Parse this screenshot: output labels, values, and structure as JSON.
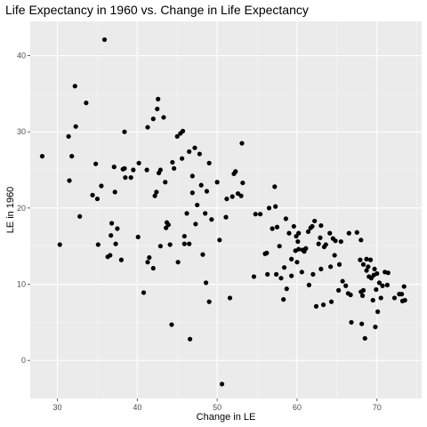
{
  "chart_data": {
    "type": "scatter",
    "title": "Life Expectancy in 1960 vs. Change in Life Expectancy",
    "xlabel": "Change in LE",
    "ylabel": "LE in 1960",
    "xlim": [
      26.6,
      75.6
    ],
    "ylim": [
      -5.0,
      44.5
    ],
    "xticks": [
      30,
      40,
      50,
      60,
      70
    ],
    "yticks": [
      0,
      10,
      20,
      30,
      40
    ],
    "grid": true,
    "background": "#ebebeb",
    "point_color": "#000000",
    "points": [
      [
        28.1,
        26.8
      ],
      [
        30.3,
        15.2
      ],
      [
        31.4,
        29.4
      ],
      [
        31.5,
        23.6
      ],
      [
        31.8,
        26.8
      ],
      [
        32.2,
        36.0
      ],
      [
        32.3,
        30.7
      ],
      [
        32.8,
        18.9
      ],
      [
        33.6,
        33.8
      ],
      [
        34.4,
        21.7
      ],
      [
        34.8,
        25.8
      ],
      [
        35.0,
        21.2
      ],
      [
        35.1,
        15.2
      ],
      [
        35.5,
        22.9
      ],
      [
        35.9,
        42.1
      ],
      [
        36.3,
        13.6
      ],
      [
        36.6,
        13.8
      ],
      [
        36.7,
        16.4
      ],
      [
        36.8,
        18.0
      ],
      [
        37.1,
        25.4
      ],
      [
        37.2,
        22.1
      ],
      [
        37.3,
        15.3
      ],
      [
        37.5,
        17.3
      ],
      [
        38.0,
        13.2
      ],
      [
        38.2,
        25.1
      ],
      [
        38.4,
        25.2
      ],
      [
        38.4,
        30.0
      ],
      [
        38.5,
        24.0
      ],
      [
        39.2,
        24.0
      ],
      [
        39.5,
        25.0
      ],
      [
        40.1,
        16.2
      ],
      [
        40.2,
        25.9
      ],
      [
        40.8,
        8.9
      ],
      [
        41.2,
        25.0
      ],
      [
        41.3,
        30.6
      ],
      [
        41.3,
        12.9
      ],
      [
        41.5,
        13.5
      ],
      [
        42.0,
        31.7
      ],
      [
        42.0,
        12.1
      ],
      [
        42.2,
        21.6
      ],
      [
        42.4,
        22.1
      ],
      [
        42.5,
        33.0
      ],
      [
        42.6,
        34.3
      ],
      [
        42.7,
        24.6
      ],
      [
        42.9,
        25.0
      ],
      [
        42.9,
        15.0
      ],
      [
        43.3,
        31.9
      ],
      [
        43.5,
        23.4
      ],
      [
        43.6,
        17.4
      ],
      [
        43.7,
        18.1
      ],
      [
        43.9,
        17.8
      ],
      [
        44.1,
        15.2
      ],
      [
        44.3,
        4.7
      ],
      [
        44.4,
        26.0
      ],
      [
        44.6,
        25.2
      ],
      [
        45.0,
        29.4
      ],
      [
        45.1,
        12.9
      ],
      [
        45.4,
        29.8
      ],
      [
        45.6,
        26.5
      ],
      [
        45.7,
        30.1
      ],
      [
        45.9,
        16.3
      ],
      [
        45.9,
        15.3
      ],
      [
        46.2,
        19.3
      ],
      [
        46.5,
        27.4
      ],
      [
        46.5,
        15.3
      ],
      [
        46.6,
        2.8
      ],
      [
        46.9,
        24.2
      ],
      [
        46.9,
        22.0
      ],
      [
        47.2,
        27.9
      ],
      [
        47.3,
        17.9
      ],
      [
        47.5,
        20.4
      ],
      [
        47.8,
        27.1
      ],
      [
        48.0,
        23.0
      ],
      [
        48.2,
        13.9
      ],
      [
        48.5,
        19.3
      ],
      [
        48.6,
        10.2
      ],
      [
        48.7,
        22.2
      ],
      [
        49.0,
        7.7
      ],
      [
        49.0,
        25.9
      ],
      [
        49.3,
        18.5
      ],
      [
        50.0,
        23.4
      ],
      [
        50.3,
        15.8
      ],
      [
        50.6,
        -3.1
      ],
      [
        51.1,
        18.8
      ],
      [
        51.2,
        21.2
      ],
      [
        51.6,
        8.2
      ],
      [
        51.9,
        21.5
      ],
      [
        52.1,
        24.5
      ],
      [
        52.3,
        24.8
      ],
      [
        52.6,
        21.9
      ],
      [
        53.0,
        21.6
      ],
      [
        53.1,
        28.5
      ],
      [
        53.2,
        23.3
      ],
      [
        54.6,
        11.0
      ],
      [
        54.8,
        19.2
      ],
      [
        55.4,
        19.2
      ],
      [
        56.0,
        14.0
      ],
      [
        56.2,
        14.1
      ],
      [
        56.3,
        11.3
      ],
      [
        56.5,
        20.0
      ],
      [
        56.9,
        17.3
      ],
      [
        57.2,
        22.8
      ],
      [
        57.3,
        20.2
      ],
      [
        57.4,
        11.3
      ],
      [
        57.5,
        17.5
      ],
      [
        57.8,
        15.0
      ],
      [
        58.0,
        10.8
      ],
      [
        58.3,
        8.0
      ],
      [
        58.4,
        12.2
      ],
      [
        58.6,
        18.6
      ],
      [
        58.7,
        9.4
      ],
      [
        59.0,
        16.7
      ],
      [
        59.3,
        11.1
      ],
      [
        59.3,
        13.3
      ],
      [
        59.6,
        17.6
      ],
      [
        59.8,
        14.4
      ],
      [
        59.9,
        16.3
      ],
      [
        60.0,
        12.9
      ],
      [
        60.1,
        15.6
      ],
      [
        60.2,
        16.7
      ],
      [
        60.2,
        14.6
      ],
      [
        60.6,
        11.6
      ],
      [
        60.7,
        14.5
      ],
      [
        60.9,
        14.3
      ],
      [
        61.1,
        14.7
      ],
      [
        61.4,
        16.9
      ],
      [
        61.5,
        9.9
      ],
      [
        61.7,
        17.4
      ],
      [
        61.9,
        17.6
      ],
      [
        62.0,
        11.3
      ],
      [
        62.2,
        18.3
      ],
      [
        62.4,
        7.1
      ],
      [
        62.7,
        15.3
      ],
      [
        62.9,
        16.1
      ],
      [
        63.0,
        12.0
      ],
      [
        63.0,
        17.7
      ],
      [
        63.3,
        7.3
      ],
      [
        63.4,
        14.9
      ],
      [
        63.6,
        15.2
      ],
      [
        64.1,
        16.7
      ],
      [
        64.2,
        12.3
      ],
      [
        64.3,
        7.7
      ],
      [
        64.5,
        16.0
      ],
      [
        64.7,
        13.8
      ],
      [
        64.8,
        15.7
      ],
      [
        65.2,
        9.2
      ],
      [
        65.3,
        12.6
      ],
      [
        65.5,
        15.6
      ],
      [
        65.7,
        10.4
      ],
      [
        66.1,
        9.8
      ],
      [
        66.4,
        8.8
      ],
      [
        66.5,
        16.7
      ],
      [
        66.7,
        8.6
      ],
      [
        66.8,
        5.0
      ],
      [
        67.5,
        16.8
      ],
      [
        67.9,
        13.2
      ],
      [
        68.0,
        9.0
      ],
      [
        68.0,
        15.8
      ],
      [
        68.1,
        4.8
      ],
      [
        68.2,
        8.5
      ],
      [
        68.3,
        9.2
      ],
      [
        68.3,
        12.6
      ],
      [
        68.5,
        2.9
      ],
      [
        68.7,
        11.8
      ],
      [
        68.7,
        13.3
      ],
      [
        68.9,
        12.3
      ],
      [
        69.0,
        11.0
      ],
      [
        69.2,
        13.2
      ],
      [
        69.3,
        10.8
      ],
      [
        69.5,
        7.9
      ],
      [
        69.6,
        11.2
      ],
      [
        69.7,
        12.0
      ],
      [
        69.8,
        4.4
      ],
      [
        69.9,
        9.3
      ],
      [
        70.0,
        11.4
      ],
      [
        70.1,
        6.4
      ],
      [
        70.3,
        10.2
      ],
      [
        70.5,
        8.2
      ],
      [
        70.7,
        9.8
      ],
      [
        71.0,
        11.6
      ],
      [
        71.3,
        9.9
      ],
      [
        71.4,
        11.5
      ],
      [
        72.2,
        8.2
      ],
      [
        72.8,
        8.7
      ],
      [
        73.1,
        8.7
      ],
      [
        73.2,
        7.8
      ],
      [
        73.4,
        9.7
      ],
      [
        73.5,
        7.9
      ]
    ]
  }
}
